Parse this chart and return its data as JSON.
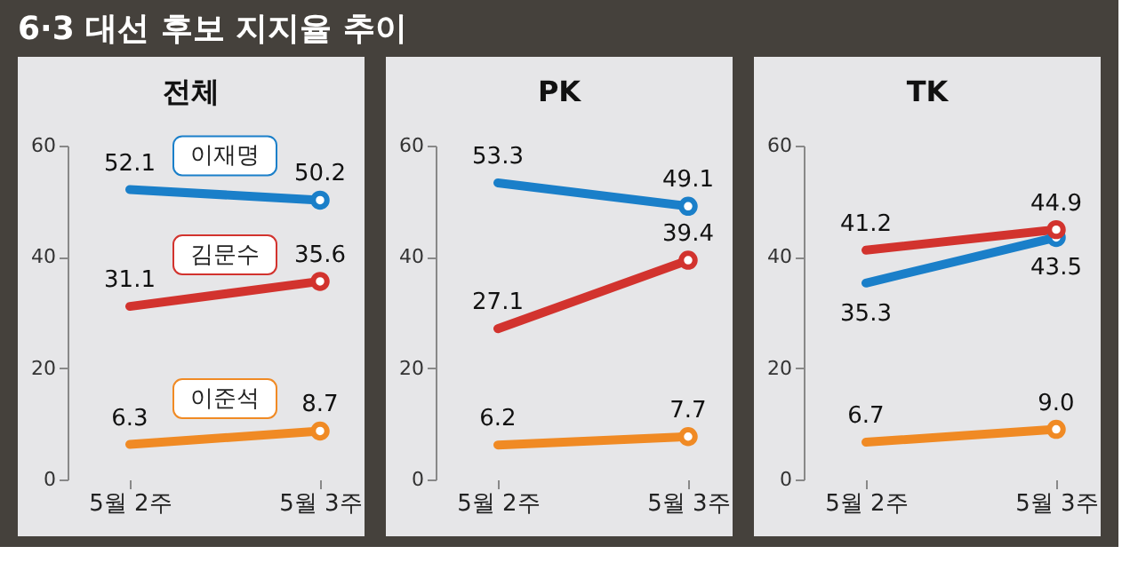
{
  "chart_data": [
    {
      "type": "line",
      "title": "전체",
      "annotations": [
        "6·3 대선 후보 지지율 추이"
      ],
      "categories": [
        "5월 2주",
        "5월 3주"
      ],
      "ylim": [
        0,
        60
      ],
      "yticks": [
        0,
        20,
        40,
        60
      ],
      "grid": false,
      "legend": false,
      "marker": "circle",
      "data_labels": true,
      "series": [
        {
          "name": "이재명",
          "color": "#1a7fc9",
          "values": [
            52.1,
            50.2
          ]
        },
        {
          "name": "김문수",
          "color": "#d2332e",
          "values": [
            31.1,
            35.6
          ]
        },
        {
          "name": "이준석",
          "color": "#f08a24",
          "values": [
            6.3,
            8.7
          ]
        }
      ]
    },
    {
      "type": "line",
      "title": "PK",
      "categories": [
        "5월 2주",
        "5월 3주"
      ],
      "ylim": [
        0,
        60
      ],
      "yticks": [
        0,
        20,
        40,
        60
      ],
      "grid": false,
      "legend": false,
      "marker": "circle",
      "data_labels": true,
      "series": [
        {
          "color": "#1a7fc9",
          "values": [
            53.3,
            49.1
          ]
        },
        {
          "color": "#d2332e",
          "values": [
            27.1,
            39.4
          ]
        },
        {
          "color": "#f08a24",
          "values": [
            6.2,
            7.7
          ]
        }
      ]
    },
    {
      "type": "line",
      "title": "TK",
      "categories": [
        "5월 2주",
        "5월 3주"
      ],
      "ylim": [
        0,
        60
      ],
      "yticks": [
        0,
        20,
        40,
        60
      ],
      "grid": false,
      "legend": false,
      "marker": "circle",
      "data_labels": true,
      "series": [
        {
          "color": "#1a7fc9",
          "values": [
            35.3,
            43.5
          ]
        },
        {
          "color": "#d2332e",
          "values": [
            41.2,
            44.9
          ]
        },
        {
          "color": "#f08a24",
          "values": [
            6.7,
            9.0
          ],
          "value_labels": [
            "6.7",
            "9.0"
          ]
        }
      ]
    }
  ]
}
